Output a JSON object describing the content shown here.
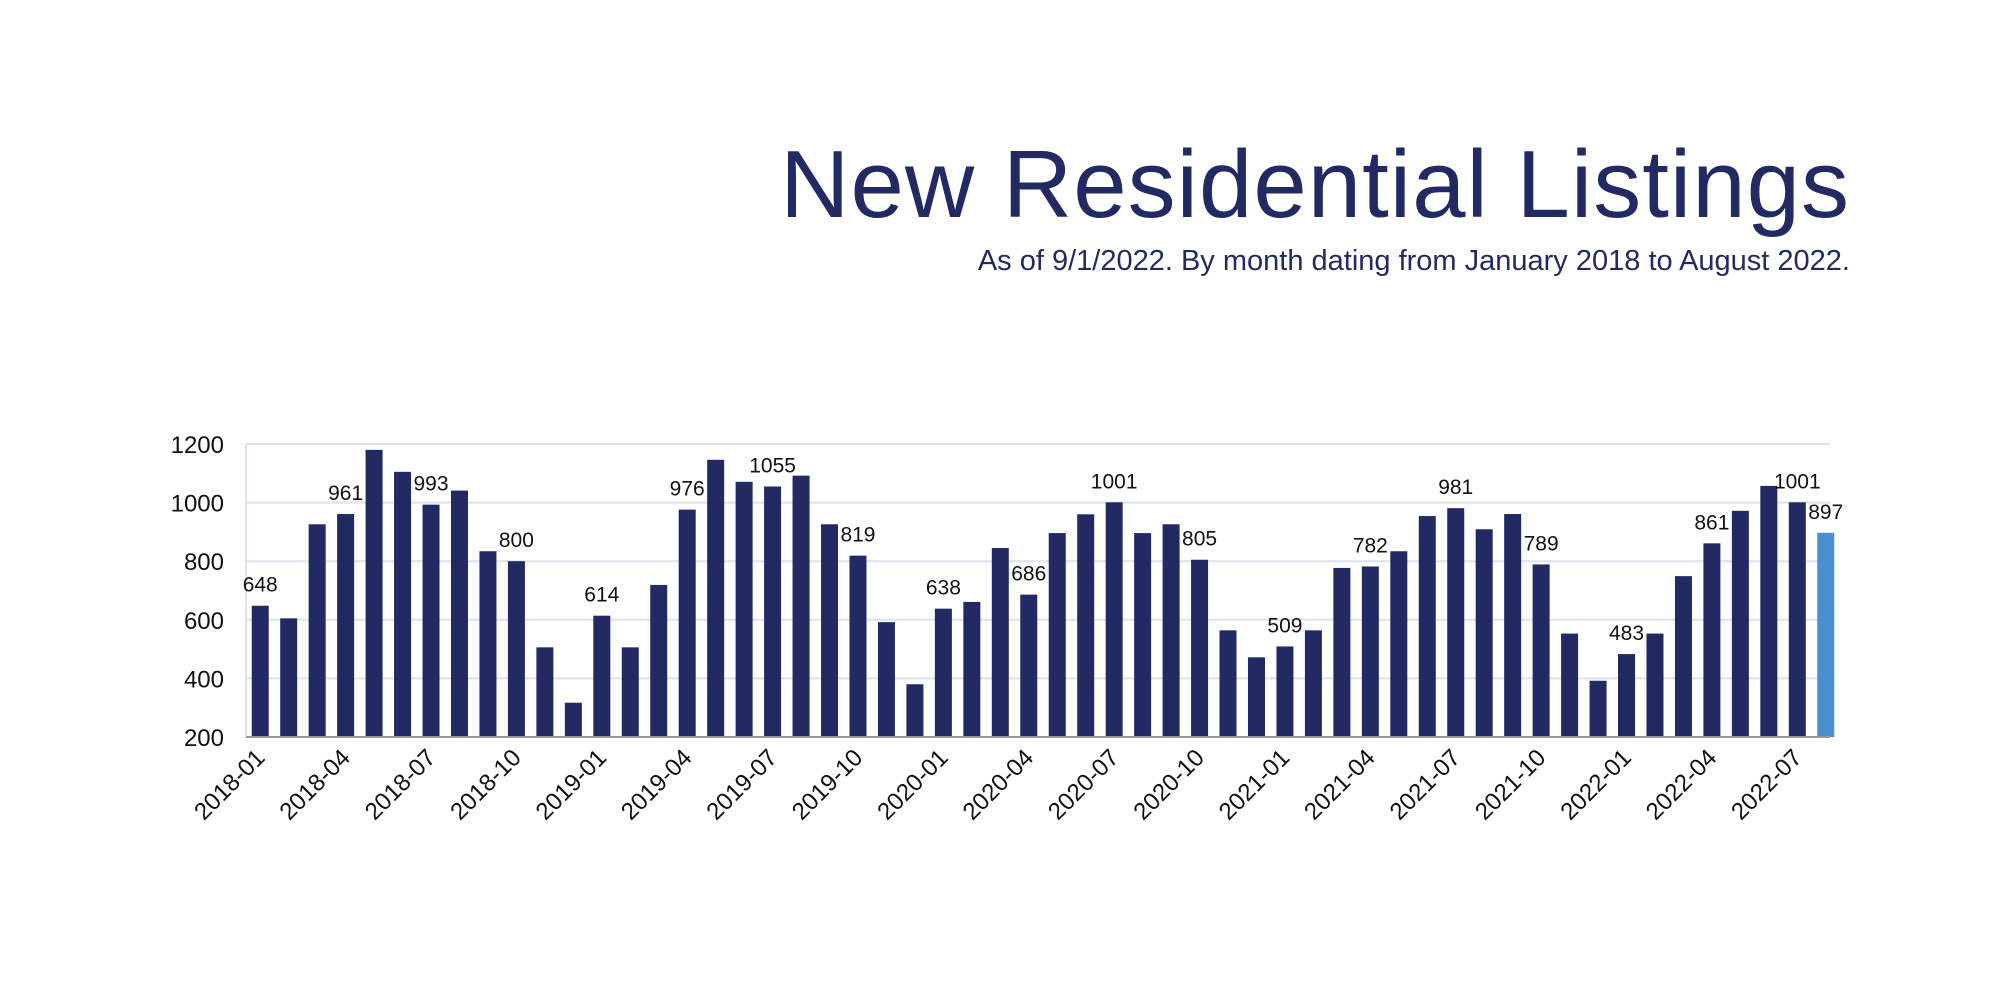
{
  "chart_data": {
    "type": "bar",
    "title": "New Residential Listings",
    "subtitle": "As of 9/1/2022. By month dating from January 2018 to August 2022.",
    "xlabel": "",
    "ylabel": "",
    "ylim": [
      200,
      1200
    ],
    "yticks": [
      200,
      400,
      600,
      800,
      1000,
      1200
    ],
    "grid": true,
    "colors": {
      "bar": "#232a63",
      "highlight": "#4a8fd0",
      "grid": "#dde2f0"
    },
    "categories": [
      "2018-01",
      "2018-02",
      "2018-03",
      "2018-04",
      "2018-05",
      "2018-06",
      "2018-07",
      "2018-08",
      "2018-09",
      "2018-10",
      "2018-11",
      "2018-12",
      "2019-01",
      "2019-02",
      "2019-03",
      "2019-04",
      "2019-05",
      "2019-06",
      "2019-07",
      "2019-08",
      "2019-09",
      "2019-10",
      "2019-11",
      "2019-12",
      "2020-01",
      "2020-02",
      "2020-03",
      "2020-04",
      "2020-05",
      "2020-06",
      "2020-07",
      "2020-08",
      "2020-09",
      "2020-10",
      "2020-11",
      "2020-12",
      "2021-01",
      "2021-02",
      "2021-03",
      "2021-04",
      "2021-05",
      "2021-06",
      "2021-07",
      "2021-08",
      "2021-09",
      "2021-10",
      "2021-11",
      "2021-12",
      "2022-01",
      "2022-02",
      "2022-03",
      "2022-04",
      "2022-05",
      "2022-06",
      "2022-07",
      "2022-08"
    ],
    "xtick_labels": [
      "2018-01",
      "2018-04",
      "2018-07",
      "2018-10",
      "2019-01",
      "2019-04",
      "2019-07",
      "2019-10",
      "2020-01",
      "2020-04",
      "2020-07",
      "2020-10",
      "2021-01",
      "2021-04",
      "2021-07",
      "2021-10",
      "2022-01",
      "2022-04",
      "2022-07"
    ],
    "values": [
      648,
      605,
      926,
      961,
      1180,
      1105,
      993,
      1041,
      834,
      800,
      506,
      317,
      614,
      506,
      719,
      976,
      1146,
      1071,
      1055,
      1092,
      926,
      819,
      592,
      380,
      638,
      661,
      845,
      686,
      896,
      960,
      1001,
      896,
      926,
      805,
      564,
      472,
      509,
      564,
      777,
      782,
      834,
      954,
      981,
      909,
      961,
      789,
      553,
      392,
      483,
      553,
      749,
      861,
      972,
      1057,
      1001,
      897
    ],
    "data_labels": [
      {
        "category": "2018-01",
        "text": "648"
      },
      {
        "category": "2018-04",
        "text": "961"
      },
      {
        "category": "2018-07",
        "text": "993"
      },
      {
        "category": "2018-10",
        "text": "800"
      },
      {
        "category": "2019-01",
        "text": "614"
      },
      {
        "category": "2019-04",
        "text": "976"
      },
      {
        "category": "2019-07",
        "text": "1055"
      },
      {
        "category": "2019-10",
        "text": "819"
      },
      {
        "category": "2020-01",
        "text": "638"
      },
      {
        "category": "2020-04",
        "text": "686"
      },
      {
        "category": "2020-07",
        "text": "1001"
      },
      {
        "category": "2020-10",
        "text": "805"
      },
      {
        "category": "2021-01",
        "text": "509"
      },
      {
        "category": "2021-04",
        "text": "782"
      },
      {
        "category": "2021-07",
        "text": "981"
      },
      {
        "category": "2021-10",
        "text": "789"
      },
      {
        "category": "2022-01",
        "text": "483"
      },
      {
        "category": "2022-04",
        "text": "861"
      },
      {
        "category": "2022-07",
        "text": "1001"
      },
      {
        "category": "2022-08",
        "text": "897"
      }
    ],
    "highlight_category": "2022-08"
  }
}
